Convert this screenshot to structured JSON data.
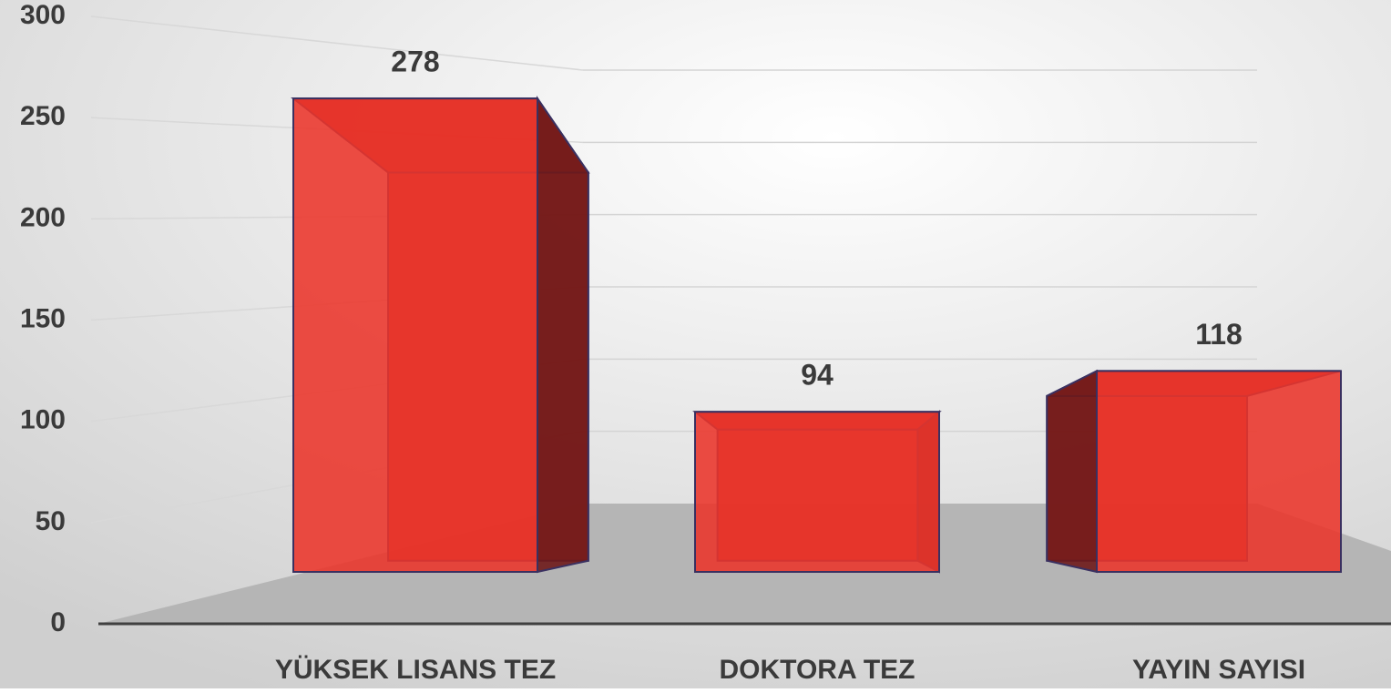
{
  "chart_data": {
    "type": "bar3d",
    "categories": [
      "YÜKSEK LISANS TEZ",
      "DOKTORA TEZ",
      "YAYIN SAYISI"
    ],
    "values": [
      278,
      94,
      118
    ],
    "color": "#e8332a",
    "ylim": [
      0,
      300
    ],
    "yticks": [
      0,
      50,
      100,
      150,
      200,
      250,
      300
    ],
    "grid": true
  }
}
